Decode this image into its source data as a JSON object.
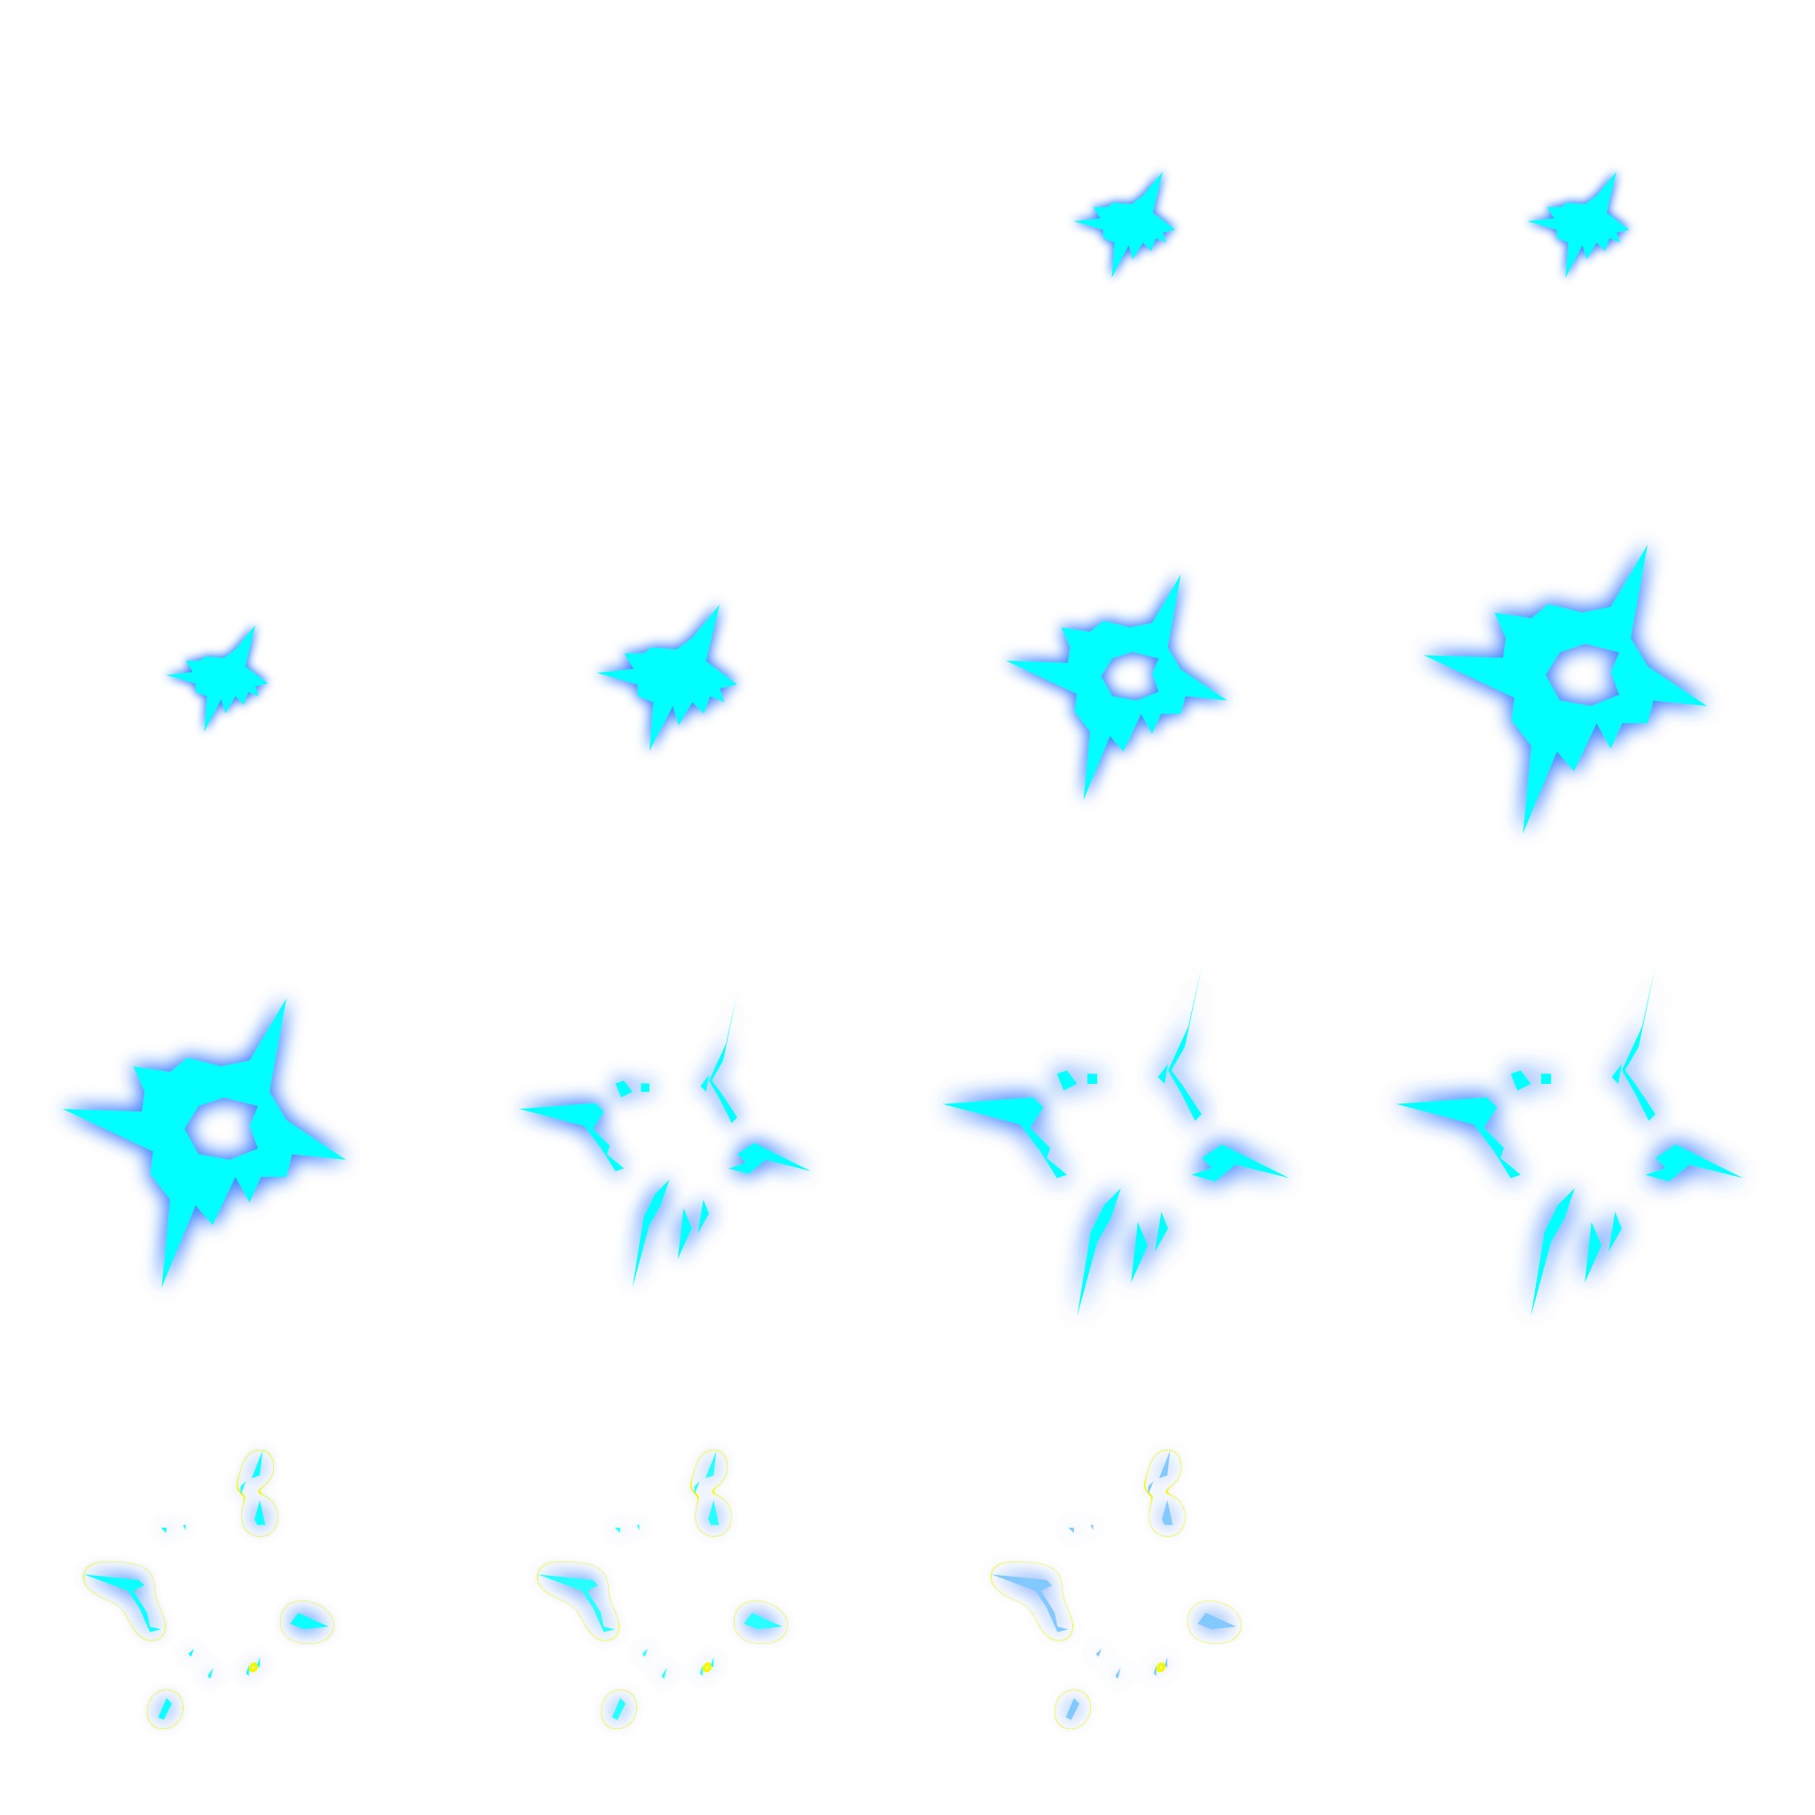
{
  "sprite_sheet": {
    "grid": {
      "columns": 4,
      "rows": 4
    },
    "background": "#ffffff",
    "frames": [
      {
        "id": 1,
        "kind": "empty"
      },
      {
        "id": 2,
        "kind": "empty"
      },
      {
        "id": 3,
        "kind": "solid",
        "scale": 0.8,
        "opacity": 1.0
      },
      {
        "id": 4,
        "kind": "solid",
        "scale": 0.8,
        "opacity": 1.0
      },
      {
        "id": 5,
        "kind": "solid",
        "scale": 0.8,
        "opacity": 1.0
      },
      {
        "id": 6,
        "kind": "solid",
        "scale": 1.1,
        "opacity": 1.0
      },
      {
        "id": 7,
        "kind": "ring",
        "scale": 1.25,
        "opacity": 1.0
      },
      {
        "id": 8,
        "kind": "ring",
        "scale": 1.6,
        "opacity": 1.0
      },
      {
        "id": 9,
        "kind": "ring",
        "scale": 1.6,
        "opacity": 1.0
      },
      {
        "id": 10,
        "kind": "shards",
        "scale": 1.6,
        "opacity": 1.0
      },
      {
        "id": 11,
        "kind": "shards",
        "scale": 1.9,
        "opacity": 1.0
      },
      {
        "id": 12,
        "kind": "shards",
        "scale": 1.9,
        "opacity": 1.0
      },
      {
        "id": 13,
        "kind": "fragments",
        "scale": 1.55,
        "opacity": 0.95
      },
      {
        "id": 14,
        "kind": "fragments",
        "scale": 1.55,
        "opacity": 0.85
      },
      {
        "id": 15,
        "kind": "fragments",
        "scale": 1.55,
        "opacity": 0.7
      },
      {
        "id": 16,
        "kind": "empty"
      }
    ]
  },
  "colors": {
    "fill": "#00ffff",
    "glow": "#3a7dff",
    "fade_fill": "#4db3ff"
  }
}
